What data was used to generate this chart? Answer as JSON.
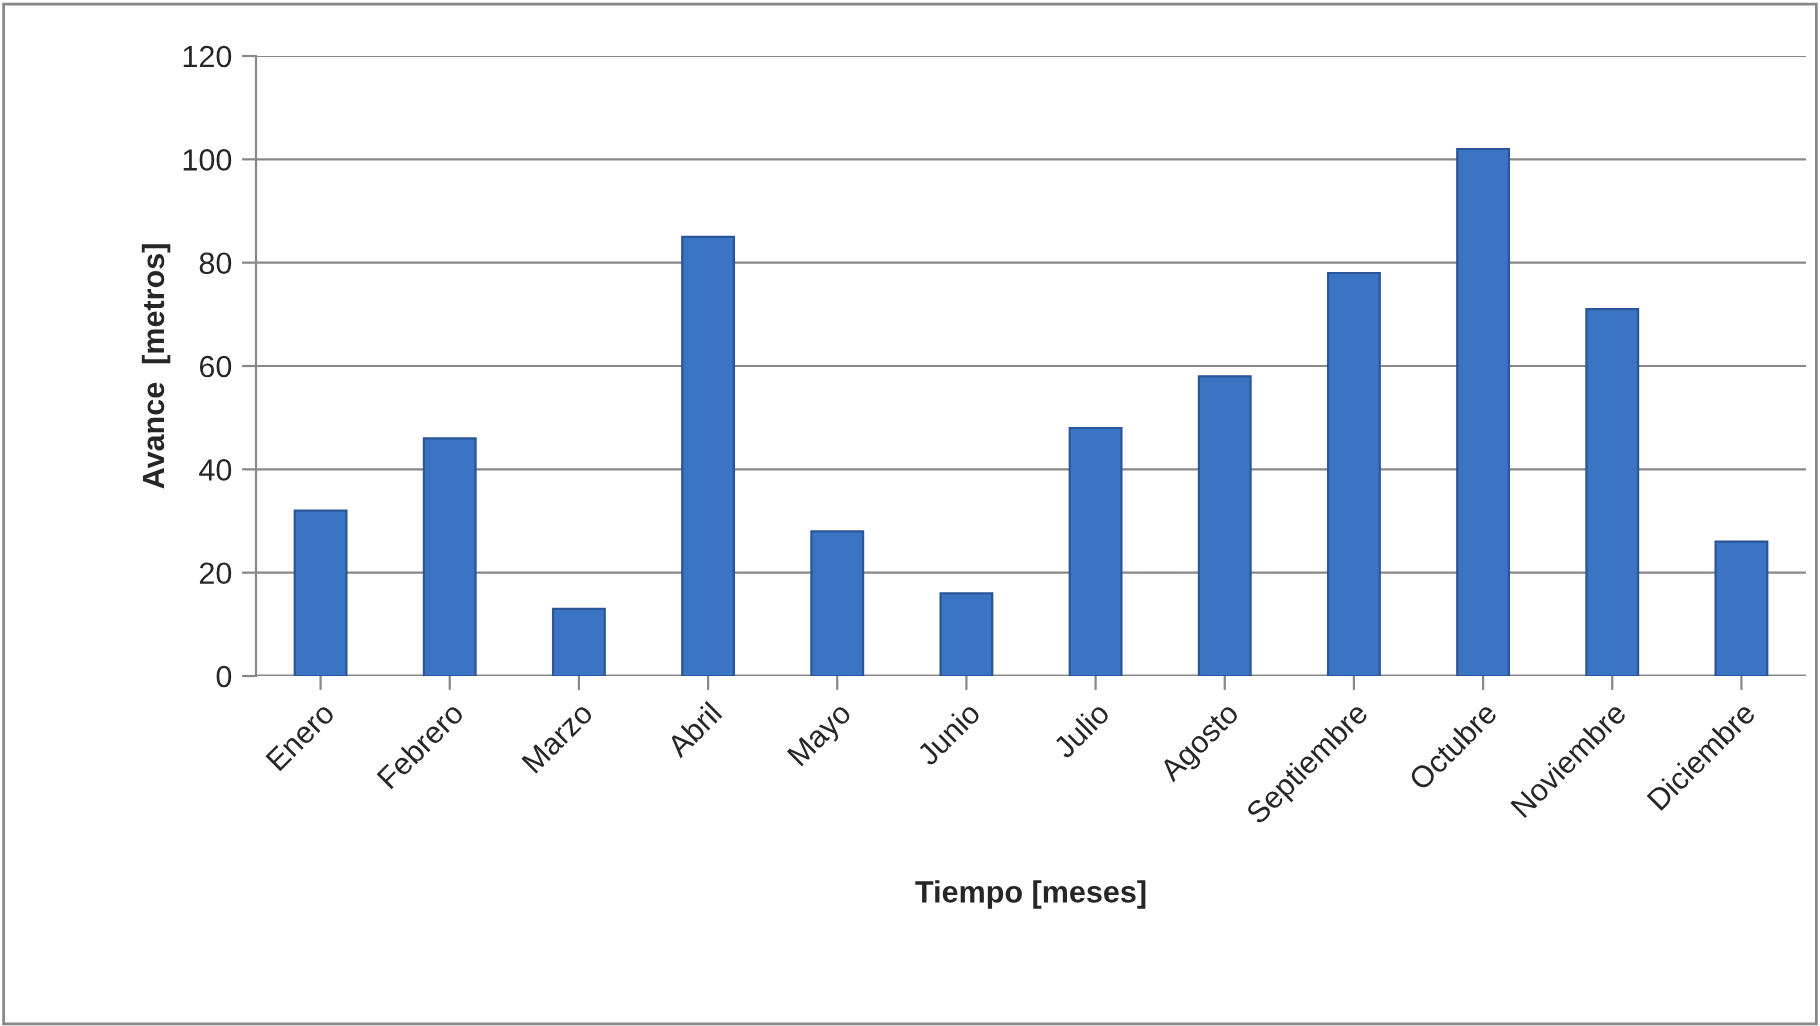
{
  "chart_data": {
    "type": "bar",
    "xlabel": "Tiempo [meses]",
    "ylabel": "Avance  [metros]",
    "categories": [
      "Enero",
      "Febrero",
      "Marzo",
      "Abril",
      "Mayo",
      "Junio",
      "Julio",
      "Agosto",
      "Septiembre",
      "Octubre",
      "Noviembre",
      "Diciembre"
    ],
    "values": [
      32,
      46,
      13,
      85,
      28,
      16,
      48,
      58,
      78,
      102,
      71,
      26
    ],
    "color": "#3c74c4",
    "ylim": [
      0,
      120
    ],
    "yticks": [
      0,
      20,
      40,
      60,
      80,
      100,
      120
    ],
    "grid": "y",
    "legend": false
  }
}
